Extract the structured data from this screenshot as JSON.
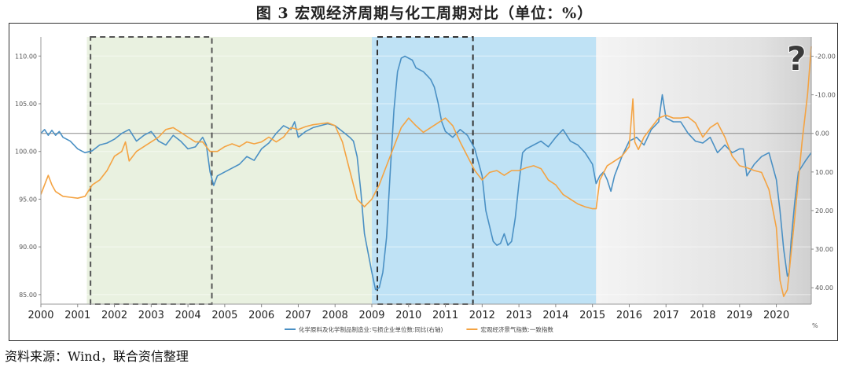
{
  "figure": {
    "title": "图 3   宏观经济周期与化工周期对比（单位：%）",
    "source": "资料来源：Wind，联合资信整理"
  },
  "chart_data": {
    "type": "line",
    "question_mark": "?",
    "unit_mark": "%",
    "xlim": [
      2000,
      2020.95
    ],
    "x_ticks": [
      "2000",
      "2001",
      "2002",
      "2003",
      "2004",
      "2005",
      "2006",
      "2007",
      "2008",
      "2009",
      "2010",
      "2011",
      "2012",
      "2013",
      "2014",
      "2015",
      "2016",
      "2017",
      "2018",
      "2019",
      "2020"
    ],
    "y_left": {
      "ylim": [
        84,
        112
      ],
      "ticks": [
        "85.00",
        "90.00",
        "95.00",
        "100.00",
        "105.00",
        "110.00"
      ]
    },
    "y_right": {
      "ylim": [
        44.25,
        -25
      ],
      "reversed": true,
      "ticks": [
        "-20.00",
        "-10.00",
        "0.00",
        "10.00",
        "20.00",
        "30.00",
        "40.00"
      ]
    },
    "shaded_regions": [
      {
        "from": 2001.25,
        "to": 2009.0,
        "color": "#e9f1e0"
      },
      {
        "from": 2009.0,
        "to": 2015.1,
        "color": "#bfe2f5"
      },
      {
        "from": 2015.1,
        "to": 2020.95,
        "color": "#e6e6e6"
      }
    ],
    "dashed_boxes": [
      {
        "from": 2001.35,
        "to": 2004.65,
        "y_top": 112,
        "y_bottom": 84,
        "color": "#555555"
      },
      {
        "from": 2009.15,
        "to": 2011.75,
        "y_top": 112,
        "y_bottom": 84,
        "color": "#333333"
      }
    ],
    "reference_line": {
      "axis": "right",
      "value": 0
    },
    "series": [
      {
        "name": "化学原料及化学制品制造业:亏损企业单位数:同比(右轴)",
        "axis": "right",
        "color": "#4a90c4",
        "points": [
          [
            2000.0,
            0.0
          ],
          [
            2000.1,
            -1.0
          ],
          [
            2000.2,
            0.5
          ],
          [
            2000.3,
            -0.8
          ],
          [
            2000.4,
            0.5
          ],
          [
            2000.5,
            -0.5
          ],
          [
            2000.6,
            1.0
          ],
          [
            2000.8,
            2.0
          ],
          [
            2001.0,
            4.0
          ],
          [
            2001.2,
            5.0
          ],
          [
            2001.4,
            4.5
          ],
          [
            2001.6,
            3.0
          ],
          [
            2001.8,
            2.5
          ],
          [
            2002.0,
            1.5
          ],
          [
            2002.2,
            0.0
          ],
          [
            2002.4,
            -1.0
          ],
          [
            2002.6,
            2.0
          ],
          [
            2002.8,
            0.5
          ],
          [
            2003.0,
            -0.5
          ],
          [
            2003.2,
            2.0
          ],
          [
            2003.4,
            3.0
          ],
          [
            2003.6,
            0.5
          ],
          [
            2003.8,
            2.0
          ],
          [
            2004.0,
            4.0
          ],
          [
            2004.2,
            3.5
          ],
          [
            2004.4,
            1.0
          ],
          [
            2004.5,
            3.0
          ],
          [
            2004.6,
            10.0
          ],
          [
            2004.7,
            13.5
          ],
          [
            2004.8,
            11.0
          ],
          [
            2005.0,
            10.0
          ],
          [
            2005.2,
            9.0
          ],
          [
            2005.4,
            8.0
          ],
          [
            2005.6,
            6.0
          ],
          [
            2005.8,
            7.0
          ],
          [
            2006.0,
            4.0
          ],
          [
            2006.2,
            2.5
          ],
          [
            2006.4,
            0.0
          ],
          [
            2006.6,
            -2.0
          ],
          [
            2006.8,
            -1.0
          ],
          [
            2006.9,
            -3.0
          ],
          [
            2007.0,
            1.0
          ],
          [
            2007.2,
            -0.5
          ],
          [
            2007.4,
            -1.5
          ],
          [
            2007.6,
            -2.0
          ],
          [
            2007.8,
            -2.5
          ],
          [
            2008.0,
            -2.0
          ],
          [
            2008.2,
            -0.5
          ],
          [
            2008.4,
            1.0
          ],
          [
            2008.5,
            2.0
          ],
          [
            2008.6,
            6.0
          ],
          [
            2008.7,
            15.0
          ],
          [
            2008.8,
            26.0
          ],
          [
            2009.0,
            36.0
          ],
          [
            2009.1,
            40.5
          ],
          [
            2009.2,
            40.0
          ],
          [
            2009.3,
            36.0
          ],
          [
            2009.4,
            27.0
          ],
          [
            2009.5,
            10.0
          ],
          [
            2009.6,
            -6.0
          ],
          [
            2009.7,
            -16.0
          ],
          [
            2009.8,
            -19.5
          ],
          [
            2009.9,
            -20.0
          ],
          [
            2010.0,
            -19.5
          ],
          [
            2010.1,
            -19.0
          ],
          [
            2010.2,
            -17.0
          ],
          [
            2010.4,
            -16.0
          ],
          [
            2010.5,
            -15.0
          ],
          [
            2010.6,
            -14.0
          ],
          [
            2010.7,
            -12.0
          ],
          [
            2010.8,
            -8.0
          ],
          [
            2010.9,
            -3.0
          ],
          [
            2011.0,
            -0.5
          ],
          [
            2011.2,
            1.0
          ],
          [
            2011.4,
            -1.0
          ],
          [
            2011.6,
            0.5
          ],
          [
            2011.8,
            4.0
          ],
          [
            2012.0,
            11.0
          ],
          [
            2012.1,
            20.0
          ],
          [
            2012.2,
            24.0
          ],
          [
            2012.3,
            28.0
          ],
          [
            2012.4,
            29.0
          ],
          [
            2012.5,
            28.5
          ],
          [
            2012.6,
            26.0
          ],
          [
            2012.7,
            29.0
          ],
          [
            2012.8,
            28.0
          ],
          [
            2012.9,
            22.0
          ],
          [
            2013.0,
            13.0
          ],
          [
            2013.1,
            5.0
          ],
          [
            2013.2,
            4.0
          ],
          [
            2013.4,
            3.0
          ],
          [
            2013.6,
            2.0
          ],
          [
            2013.8,
            3.5
          ],
          [
            2014.0,
            1.0
          ],
          [
            2014.2,
            -1.0
          ],
          [
            2014.4,
            2.0
          ],
          [
            2014.6,
            3.0
          ],
          [
            2014.8,
            5.0
          ],
          [
            2015.0,
            8.0
          ],
          [
            2015.1,
            13.0
          ],
          [
            2015.2,
            11.0
          ],
          [
            2015.3,
            10.0
          ],
          [
            2015.4,
            12.0
          ],
          [
            2015.5,
            15.0
          ],
          [
            2015.6,
            11.0
          ],
          [
            2015.8,
            6.0
          ],
          [
            2016.0,
            2.0
          ],
          [
            2016.2,
            1.0
          ],
          [
            2016.4,
            3.0
          ],
          [
            2016.6,
            -1.0
          ],
          [
            2016.8,
            -3.0
          ],
          [
            2016.9,
            -10.0
          ],
          [
            2017.0,
            -4.0
          ],
          [
            2017.2,
            -3.0
          ],
          [
            2017.4,
            -3.0
          ],
          [
            2017.6,
            0.0
          ],
          [
            2017.8,
            2.0
          ],
          [
            2018.0,
            2.5
          ],
          [
            2018.2,
            1.0
          ],
          [
            2018.4,
            5.0
          ],
          [
            2018.6,
            3.0
          ],
          [
            2018.8,
            5.0
          ],
          [
            2019.0,
            4.0
          ],
          [
            2019.1,
            4.0
          ],
          [
            2019.2,
            11.0
          ],
          [
            2019.4,
            8.0
          ],
          [
            2019.6,
            6.0
          ],
          [
            2019.8,
            5.0
          ],
          [
            2020.0,
            12.0
          ],
          [
            2020.1,
            20.0
          ],
          [
            2020.2,
            30.0
          ],
          [
            2020.3,
            37.0
          ],
          [
            2020.35,
            36.0
          ],
          [
            2020.4,
            28.0
          ],
          [
            2020.5,
            18.0
          ],
          [
            2020.6,
            10.0
          ],
          [
            2020.8,
            7.0
          ],
          [
            2020.95,
            5.0
          ]
        ]
      },
      {
        "name": "宏观经济景气指数:一致指数",
        "axis": "left",
        "color": "#f4a342",
        "points": [
          [
            2000.0,
            95.5
          ],
          [
            2000.1,
            96.5
          ],
          [
            2000.2,
            97.5
          ],
          [
            2000.3,
            96.5
          ],
          [
            2000.4,
            95.8
          ],
          [
            2000.6,
            95.3
          ],
          [
            2000.8,
            95.2
          ],
          [
            2001.0,
            95.1
          ],
          [
            2001.2,
            95.3
          ],
          [
            2001.4,
            96.5
          ],
          [
            2001.6,
            97.0
          ],
          [
            2001.8,
            98.0
          ],
          [
            2002.0,
            99.5
          ],
          [
            2002.2,
            100.0
          ],
          [
            2002.3,
            101.0
          ],
          [
            2002.4,
            99.0
          ],
          [
            2002.6,
            100.0
          ],
          [
            2002.8,
            100.5
          ],
          [
            2003.0,
            101.0
          ],
          [
            2003.2,
            101.5
          ],
          [
            2003.4,
            102.3
          ],
          [
            2003.6,
            102.5
          ],
          [
            2003.8,
            102.0
          ],
          [
            2004.0,
            101.5
          ],
          [
            2004.2,
            101.0
          ],
          [
            2004.4,
            101.0
          ],
          [
            2004.6,
            100.0
          ],
          [
            2004.8,
            100.0
          ],
          [
            2005.0,
            100.5
          ],
          [
            2005.2,
            100.8
          ],
          [
            2005.4,
            100.5
          ],
          [
            2005.6,
            101.0
          ],
          [
            2005.8,
            100.8
          ],
          [
            2006.0,
            101.0
          ],
          [
            2006.2,
            101.5
          ],
          [
            2006.4,
            101.0
          ],
          [
            2006.6,
            101.5
          ],
          [
            2006.8,
            102.5
          ],
          [
            2007.0,
            102.3
          ],
          [
            2007.2,
            102.6
          ],
          [
            2007.4,
            102.8
          ],
          [
            2007.6,
            102.9
          ],
          [
            2007.8,
            103.0
          ],
          [
            2008.0,
            102.7
          ],
          [
            2008.2,
            101.0
          ],
          [
            2008.4,
            98.0
          ],
          [
            2008.6,
            95.0
          ],
          [
            2008.8,
            94.2
          ],
          [
            2009.0,
            95.0
          ],
          [
            2009.2,
            96.5
          ],
          [
            2009.4,
            98.5
          ],
          [
            2009.6,
            100.5
          ],
          [
            2009.8,
            102.5
          ],
          [
            2010.0,
            103.5
          ],
          [
            2010.2,
            102.7
          ],
          [
            2010.4,
            102.0
          ],
          [
            2010.6,
            102.5
          ],
          [
            2010.8,
            103.0
          ],
          [
            2011.0,
            103.5
          ],
          [
            2011.2,
            102.7
          ],
          [
            2011.4,
            101.0
          ],
          [
            2011.6,
            99.5
          ],
          [
            2011.8,
            98.0
          ],
          [
            2012.0,
            97.0
          ],
          [
            2012.2,
            97.8
          ],
          [
            2012.4,
            98.0
          ],
          [
            2012.6,
            97.5
          ],
          [
            2012.8,
            98.0
          ],
          [
            2013.0,
            98.0
          ],
          [
            2013.2,
            98.3
          ],
          [
            2013.4,
            98.5
          ],
          [
            2013.6,
            98.2
          ],
          [
            2013.8,
            97.0
          ],
          [
            2014.0,
            96.5
          ],
          [
            2014.2,
            95.5
          ],
          [
            2014.4,
            95.0
          ],
          [
            2014.6,
            94.5
          ],
          [
            2014.8,
            94.2
          ],
          [
            2015.0,
            94.0
          ],
          [
            2015.1,
            94.0
          ],
          [
            2015.2,
            97.0
          ],
          [
            2015.4,
            98.5
          ],
          [
            2015.6,
            99.0
          ],
          [
            2015.8,
            99.5
          ],
          [
            2016.0,
            100.5
          ],
          [
            2016.1,
            105.5
          ],
          [
            2016.15,
            101.0
          ],
          [
            2016.25,
            100.2
          ],
          [
            2016.4,
            101.5
          ],
          [
            2016.6,
            102.5
          ],
          [
            2016.8,
            103.5
          ],
          [
            2017.0,
            103.8
          ],
          [
            2017.2,
            103.5
          ],
          [
            2017.4,
            103.5
          ],
          [
            2017.6,
            103.6
          ],
          [
            2017.8,
            103.0
          ],
          [
            2018.0,
            101.5
          ],
          [
            2018.2,
            102.5
          ],
          [
            2018.4,
            103.0
          ],
          [
            2018.6,
            101.5
          ],
          [
            2018.8,
            99.5
          ],
          [
            2019.0,
            98.5
          ],
          [
            2019.2,
            98.3
          ],
          [
            2019.4,
            98.0
          ],
          [
            2019.6,
            97.8
          ],
          [
            2019.8,
            96.0
          ],
          [
            2020.0,
            92.0
          ],
          [
            2020.1,
            86.5
          ],
          [
            2020.2,
            84.8
          ],
          [
            2020.3,
            85.5
          ],
          [
            2020.5,
            93.0
          ],
          [
            2020.7,
            101.0
          ],
          [
            2020.85,
            106.0
          ],
          [
            2020.95,
            111.0
          ]
        ]
      }
    ]
  }
}
